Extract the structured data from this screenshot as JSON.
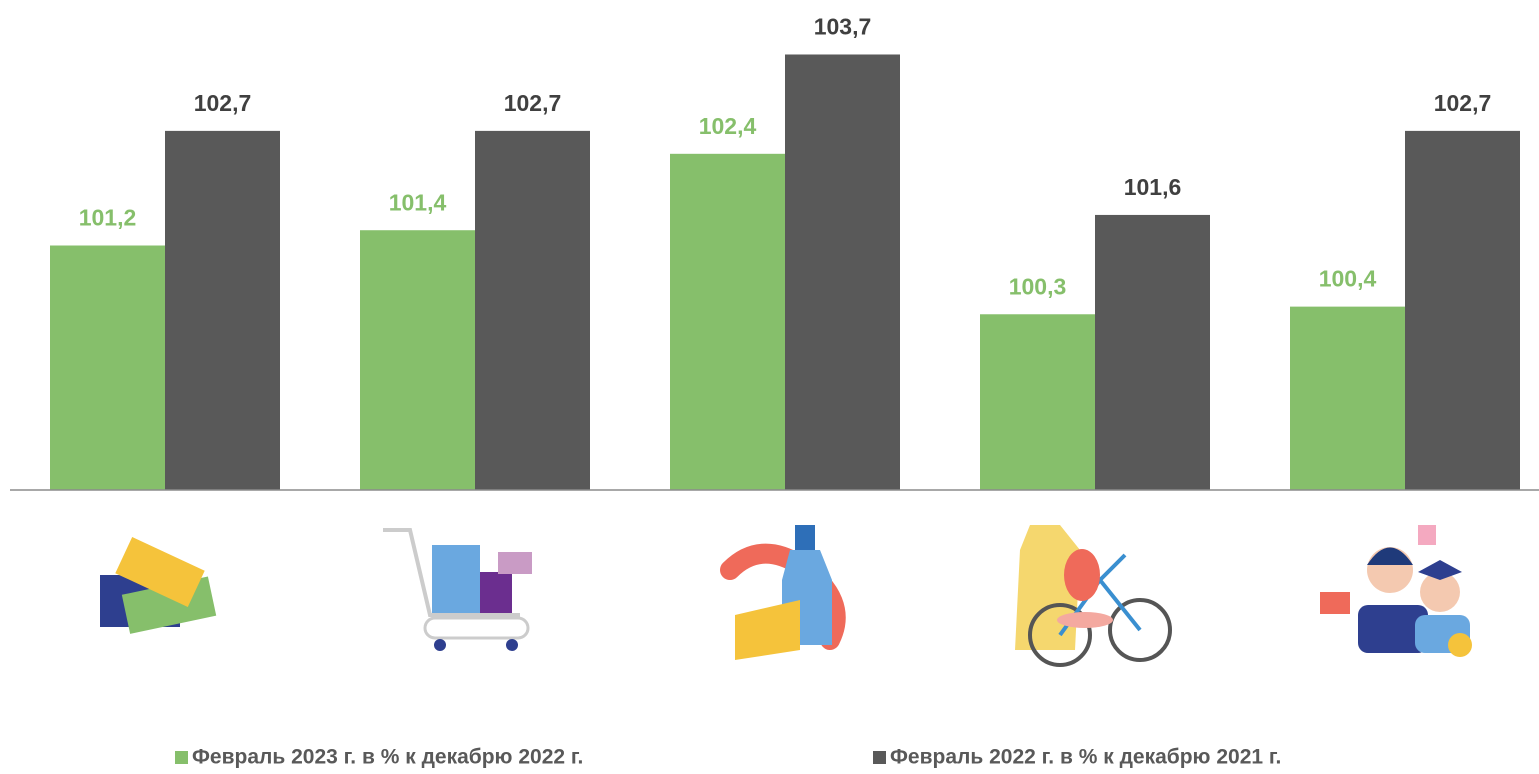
{
  "chart_data": {
    "type": "bar",
    "categories": [
      null,
      null,
      null,
      null,
      null
    ],
    "series": [
      {
        "name": "Февраль 2023 г. в % к декабрю 2022 г.",
        "color": "#86bf6b",
        "label_color": "#86bf6b",
        "values": [
          101.2,
          101.4,
          102.4,
          100.3,
          100.4
        ],
        "value_labels": [
          "101,2",
          "101,4",
          "102,4",
          "100,3",
          "100,4"
        ]
      },
      {
        "name": "Февраль 2022 г. в % к декабрю 2021 г.",
        "color": "#595959",
        "label_color": "#404040",
        "values": [
          102.7,
          102.7,
          103.7,
          101.6,
          102.7
        ],
        "value_labels": [
          "102,7",
          "102,7",
          "103,7",
          "101,6",
          "102,7"
        ]
      }
    ],
    "ylim": [
      98,
      104.4
    ],
    "legend": "bottom"
  }
}
